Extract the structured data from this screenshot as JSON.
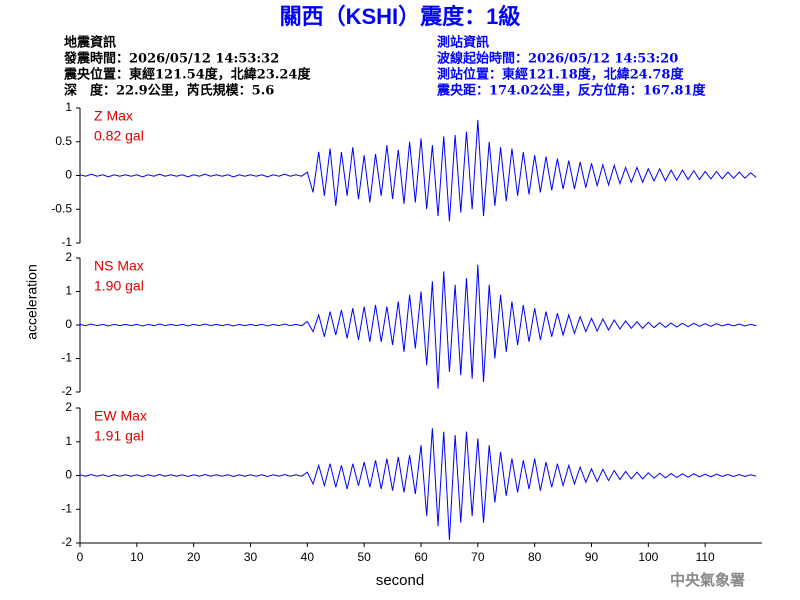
{
  "header": {
    "title": "關西（KSHI）震度：1級",
    "left": [
      "地震資訊",
      "發震時間：2026/05/12 14:53:32",
      "震央位置：東經121.54度，北緯23.24度",
      "深　度：22.9公里，芮氏規模：5.6"
    ],
    "right": [
      "測站資訊",
      "波線起始時間：2026/05/12 14:53:20",
      "測站位置：東經121.18度，北緯24.78度",
      "震央距：174.02公里，反方位角：167.81度"
    ]
  },
  "y_label": "acceleration",
  "x_label": "second",
  "footer": "中央氣象署",
  "chart_data": [
    {
      "type": "line",
      "annotations": [
        "Z Max",
        "0.82 gal"
      ],
      "color": "#0000ff",
      "xlim": [
        0,
        120
      ],
      "ylim": [
        -1,
        1
      ],
      "yticks": [
        -1,
        -0.5,
        0,
        0.5,
        1
      ],
      "x": [
        0,
        1,
        2,
        3,
        4,
        5,
        6,
        7,
        8,
        9,
        10,
        11,
        12,
        13,
        14,
        15,
        16,
        17,
        18,
        19,
        20,
        21,
        22,
        23,
        24,
        25,
        26,
        27,
        28,
        29,
        30,
        31,
        32,
        33,
        34,
        35,
        36,
        37,
        38,
        39,
        40,
        41,
        42,
        43,
        44,
        45,
        46,
        47,
        48,
        49,
        50,
        51,
        52,
        53,
        54,
        55,
        56,
        57,
        58,
        59,
        60,
        61,
        62,
        63,
        64,
        65,
        66,
        67,
        68,
        69,
        70,
        71,
        72,
        73,
        74,
        75,
        76,
        77,
        78,
        79,
        80,
        81,
        82,
        83,
        84,
        85,
        86,
        87,
        88,
        89,
        90,
        91,
        92,
        93,
        94,
        95,
        96,
        97,
        98,
        99,
        100,
        101,
        102,
        103,
        104,
        105,
        106,
        107,
        108,
        109,
        110,
        111,
        112,
        113,
        114,
        115,
        116,
        117,
        118,
        119
      ],
      "values": [
        0.01,
        -0.01,
        0.02,
        -0.01,
        0.01,
        -0.02,
        0.01,
        -0.01,
        0.01,
        -0.01,
        0.01,
        -0.02,
        0.01,
        -0.01,
        0.02,
        -0.01,
        0.01,
        -0.01,
        0.01,
        -0.02,
        0.01,
        -0.01,
        0.02,
        -0.01,
        0.01,
        -0.01,
        0.01,
        -0.02,
        0.01,
        -0.01,
        0.01,
        -0.01,
        0.01,
        -0.02,
        0.01,
        -0.01,
        0.02,
        -0.01,
        0.01,
        -0.01,
        0.05,
        -0.25,
        0.35,
        -0.3,
        0.4,
        -0.45,
        0.35,
        -0.3,
        0.42,
        -0.35,
        0.3,
        -0.4,
        0.32,
        -0.3,
        0.45,
        -0.35,
        0.38,
        -0.42,
        0.5,
        -0.4,
        0.55,
        -0.5,
        0.45,
        -0.6,
        0.58,
        -0.68,
        0.6,
        -0.55,
        0.65,
        -0.5,
        0.82,
        -0.6,
        0.5,
        -0.45,
        0.42,
        -0.38,
        0.4,
        -0.3,
        0.35,
        -0.28,
        0.3,
        -0.25,
        0.28,
        -0.22,
        0.25,
        -0.2,
        0.22,
        -0.2,
        0.2,
        -0.18,
        0.18,
        -0.15,
        0.16,
        -0.14,
        0.15,
        -0.12,
        0.12,
        -0.1,
        0.12,
        -0.1,
        0.1,
        -0.08,
        0.1,
        -0.08,
        0.08,
        -0.07,
        0.08,
        -0.06,
        0.07,
        -0.06,
        0.06,
        -0.05,
        0.06,
        -0.05,
        0.05,
        -0.04,
        0.05,
        -0.04,
        0.04,
        -0.03
      ]
    },
    {
      "type": "line",
      "annotations": [
        "NS Max",
        "1.90 gal"
      ],
      "color": "#0000ff",
      "xlim": [
        0,
        120
      ],
      "ylim": [
        -2,
        2
      ],
      "yticks": [
        -2,
        -1,
        0,
        1,
        2
      ],
      "x": [
        0,
        1,
        2,
        3,
        4,
        5,
        6,
        7,
        8,
        9,
        10,
        11,
        12,
        13,
        14,
        15,
        16,
        17,
        18,
        19,
        20,
        21,
        22,
        23,
        24,
        25,
        26,
        27,
        28,
        29,
        30,
        31,
        32,
        33,
        34,
        35,
        36,
        37,
        38,
        39,
        40,
        41,
        42,
        43,
        44,
        45,
        46,
        47,
        48,
        49,
        50,
        51,
        52,
        53,
        54,
        55,
        56,
        57,
        58,
        59,
        60,
        61,
        62,
        63,
        64,
        65,
        66,
        67,
        68,
        69,
        70,
        71,
        72,
        73,
        74,
        75,
        76,
        77,
        78,
        79,
        80,
        81,
        82,
        83,
        84,
        85,
        86,
        87,
        88,
        89,
        90,
        91,
        92,
        93,
        94,
        95,
        96,
        97,
        98,
        99,
        100,
        101,
        102,
        103,
        104,
        105,
        106,
        107,
        108,
        109,
        110,
        111,
        112,
        113,
        114,
        115,
        116,
        117,
        118,
        119
      ],
      "values": [
        0.02,
        -0.02,
        0.03,
        -0.02,
        0.02,
        -0.03,
        0.02,
        -0.02,
        0.02,
        -0.02,
        0.02,
        -0.03,
        0.02,
        -0.02,
        0.03,
        -0.02,
        0.02,
        -0.02,
        0.02,
        -0.03,
        0.02,
        -0.02,
        0.03,
        -0.02,
        0.02,
        -0.02,
        0.02,
        -0.03,
        0.02,
        -0.02,
        0.02,
        -0.02,
        0.02,
        -0.03,
        0.02,
        -0.02,
        0.03,
        -0.02,
        0.02,
        -0.02,
        0.1,
        -0.2,
        0.3,
        -0.35,
        0.4,
        -0.3,
        0.45,
        -0.4,
        0.5,
        -0.45,
        0.55,
        -0.5,
        0.6,
        -0.5,
        0.55,
        -0.6,
        0.7,
        -0.8,
        0.9,
        -0.7,
        1.0,
        -1.2,
        1.3,
        -1.9,
        1.6,
        -1.4,
        1.2,
        -1.5,
        1.4,
        -1.6,
        1.8,
        -1.7,
        1.2,
        -1.0,
        0.9,
        -0.8,
        0.7,
        -0.6,
        0.6,
        -0.5,
        0.5,
        -0.45,
        0.4,
        -0.35,
        0.35,
        -0.3,
        0.3,
        -0.25,
        0.25,
        -0.2,
        0.2,
        -0.18,
        0.18,
        -0.15,
        0.15,
        -0.12,
        0.12,
        -0.1,
        0.1,
        -0.1,
        0.08,
        -0.08,
        0.07,
        -0.07,
        0.06,
        -0.06,
        0.05,
        -0.05,
        0.05,
        -0.04,
        0.04,
        -0.04,
        0.04,
        -0.03,
        0.03,
        -0.03,
        0.03,
        -0.03,
        0.02,
        -0.02
      ]
    },
    {
      "type": "line",
      "annotations": [
        "EW Max",
        "1.91 gal"
      ],
      "color": "#0000ff",
      "xlim": [
        0,
        120
      ],
      "ylim": [
        -2,
        2
      ],
      "yticks": [
        -2,
        -1,
        0,
        1,
        2
      ],
      "xticks": [
        0,
        10,
        20,
        30,
        40,
        50,
        60,
        70,
        80,
        90,
        100,
        110
      ],
      "x": [
        0,
        1,
        2,
        3,
        4,
        5,
        6,
        7,
        8,
        9,
        10,
        11,
        12,
        13,
        14,
        15,
        16,
        17,
        18,
        19,
        20,
        21,
        22,
        23,
        24,
        25,
        26,
        27,
        28,
        29,
        30,
        31,
        32,
        33,
        34,
        35,
        36,
        37,
        38,
        39,
        40,
        41,
        42,
        43,
        44,
        45,
        46,
        47,
        48,
        49,
        50,
        51,
        52,
        53,
        54,
        55,
        56,
        57,
        58,
        59,
        60,
        61,
        62,
        63,
        64,
        65,
        66,
        67,
        68,
        69,
        70,
        71,
        72,
        73,
        74,
        75,
        76,
        77,
        78,
        79,
        80,
        81,
        82,
        83,
        84,
        85,
        86,
        87,
        88,
        89,
        90,
        91,
        92,
        93,
        94,
        95,
        96,
        97,
        98,
        99,
        100,
        101,
        102,
        103,
        104,
        105,
        106,
        107,
        108,
        109,
        110,
        111,
        112,
        113,
        114,
        115,
        116,
        117,
        118,
        119
      ],
      "values": [
        0.02,
        -0.02,
        0.03,
        -0.02,
        0.02,
        -0.03,
        0.02,
        -0.02,
        0.02,
        -0.02,
        0.02,
        -0.03,
        0.02,
        -0.02,
        0.03,
        -0.02,
        0.02,
        -0.02,
        0.02,
        -0.03,
        0.02,
        -0.02,
        0.03,
        -0.02,
        0.02,
        -0.02,
        0.02,
        -0.03,
        0.02,
        -0.02,
        0.02,
        -0.02,
        0.02,
        -0.03,
        0.02,
        -0.02,
        0.03,
        -0.02,
        0.02,
        -0.02,
        0.1,
        -0.25,
        0.3,
        -0.3,
        0.35,
        -0.35,
        0.3,
        -0.4,
        0.35,
        -0.3,
        0.4,
        -0.35,
        0.45,
        -0.4,
        0.5,
        -0.45,
        0.55,
        -0.5,
        0.6,
        -0.55,
        0.9,
        -1.2,
        1.4,
        -1.5,
        1.3,
        -1.91,
        1.2,
        -1.4,
        1.3,
        -1.2,
        1.1,
        -1.4,
        0.9,
        -0.8,
        0.7,
        -0.6,
        0.5,
        -0.5,
        0.45,
        -0.4,
        0.5,
        -0.45,
        0.4,
        -0.35,
        0.35,
        -0.3,
        0.3,
        -0.25,
        0.25,
        -0.2,
        0.2,
        -0.18,
        0.18,
        -0.15,
        0.15,
        -0.12,
        0.12,
        -0.1,
        0.1,
        -0.1,
        0.08,
        -0.08,
        0.07,
        -0.07,
        0.06,
        -0.06,
        0.05,
        -0.05,
        0.05,
        -0.04,
        0.04,
        -0.04,
        0.04,
        -0.03,
        0.03,
        -0.03,
        0.03,
        -0.03,
        0.02,
        -0.02
      ]
    }
  ]
}
